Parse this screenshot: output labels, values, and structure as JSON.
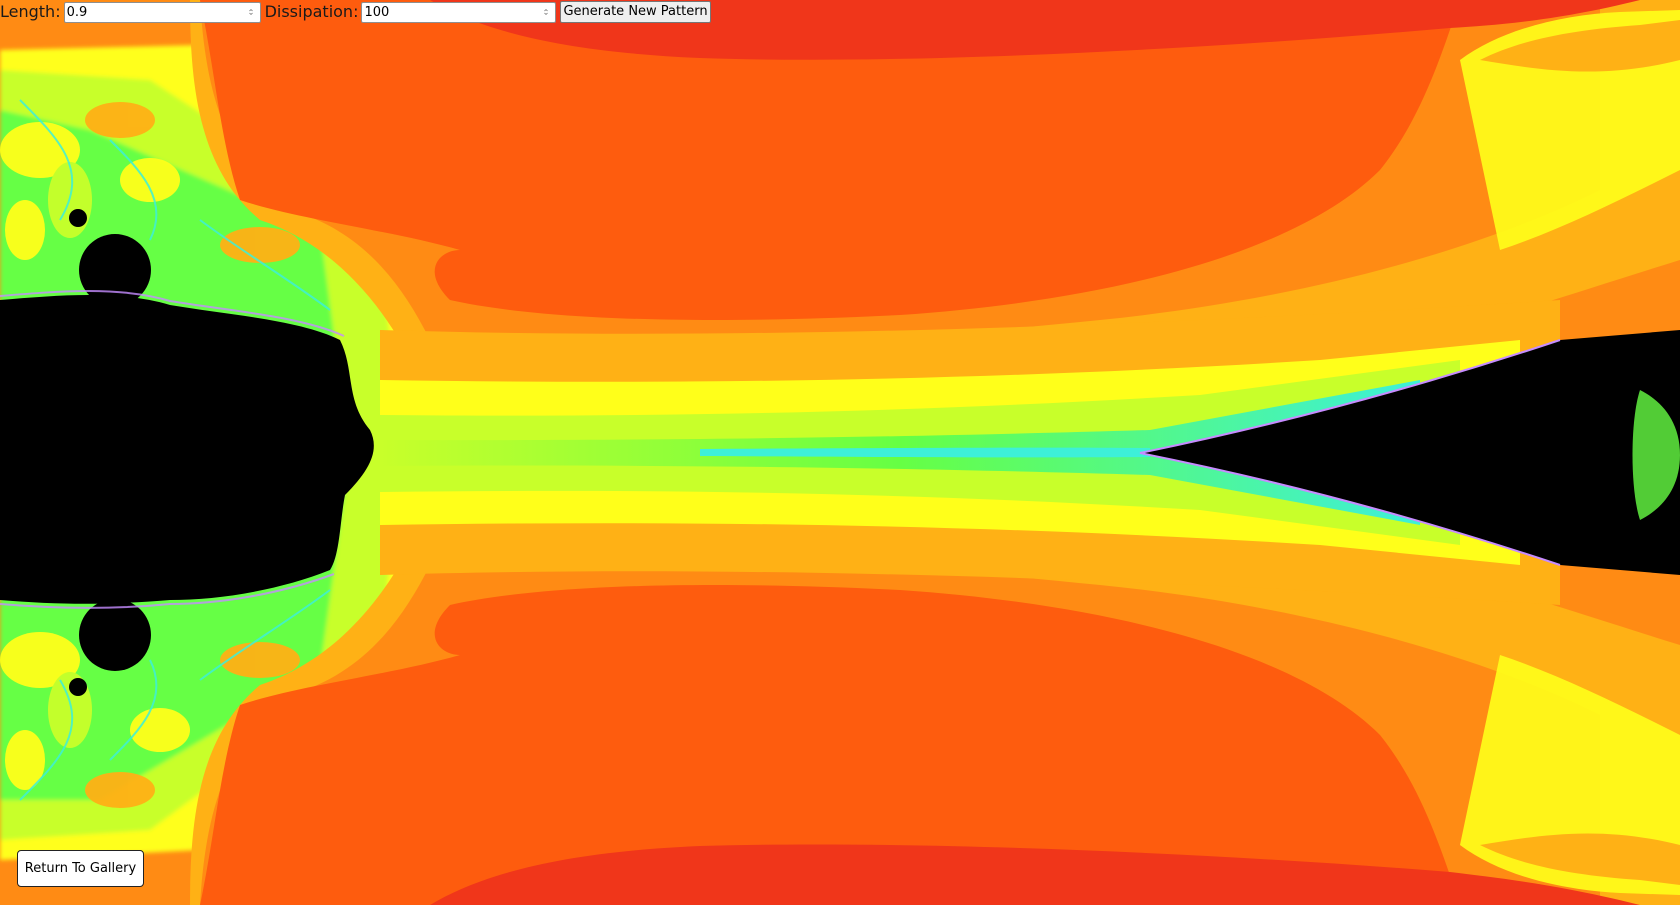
{
  "controls": {
    "length_label": "Length:",
    "length_value": "0.9",
    "dissipation_label": "Dissipation:",
    "dissipation_value": "100",
    "generate_label": "Generate New Pattern"
  },
  "footer": {
    "return_label": "Return To Gallery"
  },
  "palette": {
    "deep_red": "#f0361a",
    "red_orange": "#fe5c0e",
    "orange": "#ff8b14",
    "amber": "#ffb115",
    "yellow": "#ffff1a",
    "lime": "#c8ff2a",
    "green": "#66ff44",
    "cyan": "#3df0d8",
    "purple": "#c68cff",
    "black": "#000000"
  },
  "icons": {
    "spinner": "up-down-arrow-icon"
  }
}
